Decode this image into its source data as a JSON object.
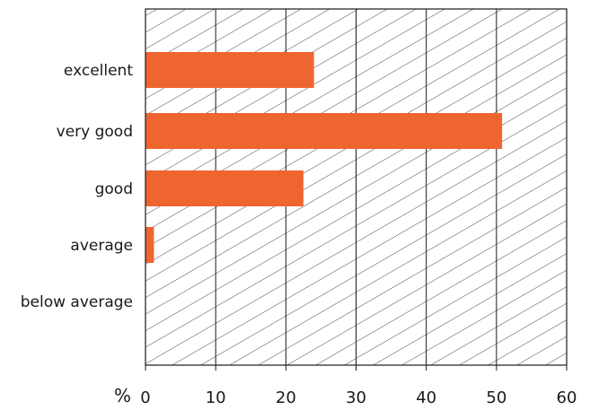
{
  "chart_data": {
    "type": "bar",
    "orientation": "horizontal",
    "categories": [
      "excellent",
      "very good",
      "good",
      "average",
      "below average"
    ],
    "values": [
      24,
      50.8,
      22.5,
      1.2,
      0
    ],
    "xlim": [
      0,
      60
    ],
    "xticks": [
      0,
      10,
      20,
      30,
      40,
      50,
      60
    ],
    "x_unit": "%",
    "grid": "vertical",
    "background_pattern": "diagonal-hatch",
    "colors": {
      "bar": "#ef6530",
      "grid": "#1a1a1a",
      "hatch": "#333333"
    }
  }
}
